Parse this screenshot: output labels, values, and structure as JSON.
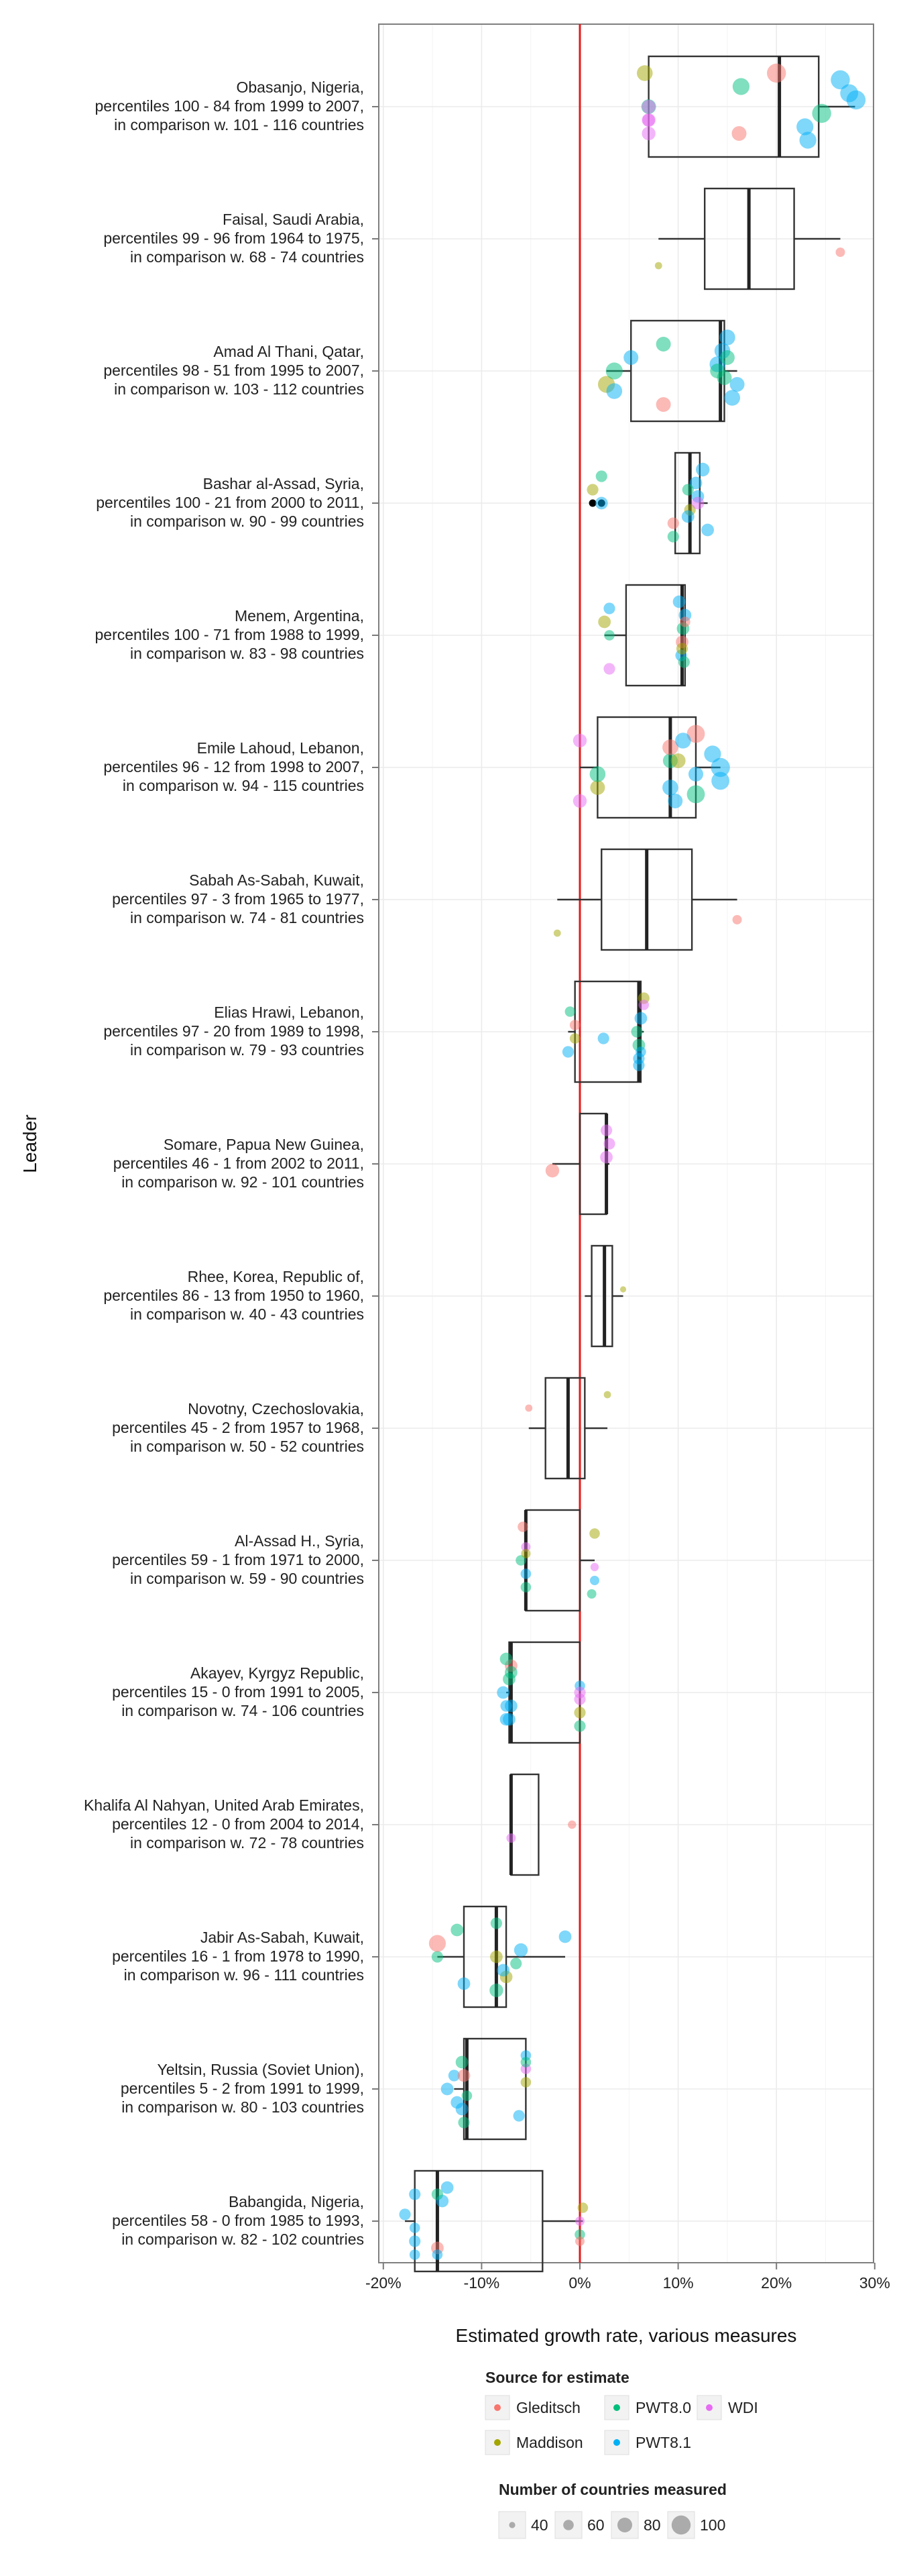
{
  "chart_data": {
    "type": "boxplot",
    "xlabel": "Estimated growth rate, various measures",
    "ylabel": "Leader",
    "xlim": [
      -0.21,
      0.3
    ],
    "x_ticks": [
      -0.2,
      -0.1,
      0.0,
      0.1,
      0.2,
      0.3
    ],
    "x_tick_labels": [
      "-20%",
      "-10%",
      "0%",
      "10%",
      "20%",
      "30%"
    ],
    "reference_line": {
      "x": 0.0,
      "color": "#e31a1c"
    },
    "grid": true,
    "legend_colour_title": "Source for estimate",
    "legend_size_title": "Number of countries measured",
    "legend_position": "bottom",
    "sources": [
      {
        "name": "Gleditsch",
        "color": "#F8766D"
      },
      {
        "name": "Maddison",
        "color": "#A3A500"
      },
      {
        "name": "PWT8.0",
        "color": "#00BF7D"
      },
      {
        "name": "PWT8.1",
        "color": "#00B0F6"
      },
      {
        "name": "WDI",
        "color": "#E76BF3"
      }
    ],
    "size_legend": [
      40,
      60,
      80,
      100
    ],
    "leaders": [
      {
        "line1": "Obasanjo, Nigeria,",
        "line2": "percentiles 100 - 84 from 1999 to 2007,",
        "line3": "in comparison w. 101 - 116 countries",
        "box": {
          "whisker_low": 0.07,
          "q1": 0.07,
          "median": 0.203,
          "q3": 0.243,
          "whisker_high": 0.28
        },
        "points": [
          [
            0.2,
            0,
            100
          ],
          [
            0.162,
            0,
            80
          ],
          [
            0.07,
            4,
            70
          ],
          [
            0.07,
            2,
            80
          ],
          [
            0.274,
            3,
            95
          ],
          [
            0.265,
            3,
            100
          ],
          [
            0.232,
            3,
            90
          ],
          [
            0.229,
            3,
            90
          ],
          [
            0.246,
            2,
            100
          ],
          [
            0.281,
            3,
            100
          ],
          [
            0.164,
            2,
            90
          ],
          [
            0.066,
            1,
            85
          ],
          [
            0.07,
            4,
            75
          ],
          [
            0.07,
            4,
            75
          ],
          [
            0.07,
            4,
            75
          ]
        ]
      },
      {
        "line1": "Faisal, Saudi Arabia,",
        "line2": "percentiles 99 - 96 from 1964 to 1975,",
        "line3": "in comparison w. 68 - 74 countries",
        "box": {
          "whisker_low": 0.08,
          "q1": 0.127,
          "median": 0.172,
          "q3": 0.218,
          "whisker_high": 0.265
        },
        "points": [
          [
            0.08,
            1,
            45
          ],
          [
            0.265,
            0,
            55
          ]
        ]
      },
      {
        "line1": "Amad Al Thani, Qatar,",
        "line2": "percentiles 98 - 51 from 1995 to 2007,",
        "line3": "in comparison w. 103 - 112 countries",
        "box": {
          "whisker_low": 0.027,
          "q1": 0.052,
          "median": 0.143,
          "q3": 0.147,
          "whisker_high": 0.16
        },
        "points": [
          [
            0.027,
            1,
            90
          ],
          [
            0.035,
            2,
            90
          ],
          [
            0.052,
            3,
            80
          ],
          [
            0.085,
            2,
            80
          ],
          [
            0.085,
            0,
            80
          ],
          [
            0.035,
            3,
            85
          ],
          [
            0.147,
            2,
            80
          ],
          [
            0.14,
            3,
            85
          ],
          [
            0.145,
            3,
            85
          ],
          [
            0.15,
            3,
            85
          ],
          [
            0.155,
            3,
            85
          ],
          [
            0.16,
            3,
            80
          ],
          [
            0.14,
            2,
            80
          ],
          [
            0.15,
            2,
            80
          ]
        ]
      },
      {
        "line1": "Bashar al-Assad, Syria,",
        "line2": "percentiles 100 - 21 from 2000 to 2011,",
        "line3": "in comparison w. 90 - 99 countries",
        "box": {
          "whisker_low": 0.097,
          "q1": 0.097,
          "median": 0.112,
          "q3": 0.122,
          "whisker_high": 0.13
        },
        "points": [
          [
            0.022,
            3,
            70
          ],
          [
            0.013,
            1,
            65
          ],
          [
            0.022,
            2,
            65
          ],
          [
            0.095,
            2,
            65
          ],
          [
            0.095,
            0,
            65
          ],
          [
            0.112,
            1,
            65
          ],
          [
            0.12,
            3,
            70
          ],
          [
            0.118,
            3,
            70
          ],
          [
            0.125,
            3,
            75
          ],
          [
            0.13,
            3,
            70
          ],
          [
            0.11,
            3,
            70
          ],
          [
            0.12,
            4,
            70
          ],
          [
            0.11,
            2,
            65
          ]
        ],
        "outliers": [
          0.013,
          0.022
        ]
      },
      {
        "line1": "Menem, Argentina,",
        "line2": "percentiles 100 - 71 from 1988 to 1999,",
        "line3": "in comparison w. 83 - 98 countries",
        "box": {
          "whisker_low": 0.025,
          "q1": 0.047,
          "median": 0.104,
          "q3": 0.107,
          "whisker_high": 0.107
        },
        "points": [
          [
            0.025,
            1,
            70
          ],
          [
            0.03,
            3,
            65
          ],
          [
            0.03,
            4,
            65
          ],
          [
            0.103,
            3,
            65
          ],
          [
            0.104,
            0,
            70
          ],
          [
            0.105,
            2,
            70
          ],
          [
            0.107,
            3,
            70
          ],
          [
            0.101,
            3,
            70
          ],
          [
            0.106,
            2,
            65
          ],
          [
            0.104,
            1,
            65
          ],
          [
            0.03,
            2,
            60
          ],
          [
            0.107,
            0,
            60
          ]
        ]
      },
      {
        "line1": "Emile Lahoud, Lebanon,",
        "line2": "percentiles 96 - 12 from 1998 to 2007,",
        "line3": "in comparison w. 94 - 115 countries",
        "box": {
          "whisker_low": 0.0,
          "q1": 0.018,
          "median": 0.092,
          "q3": 0.118,
          "whisker_high": 0.143
        },
        "points": [
          [
            0.0,
            4,
            75
          ],
          [
            0.0,
            4,
            75
          ],
          [
            0.018,
            1,
            80
          ],
          [
            0.018,
            2,
            85
          ],
          [
            0.092,
            2,
            80
          ],
          [
            0.092,
            0,
            85
          ],
          [
            0.118,
            0,
            95
          ],
          [
            0.118,
            2,
            95
          ],
          [
            0.143,
            3,
            95
          ],
          [
            0.143,
            3,
            100
          ],
          [
            0.135,
            3,
            90
          ],
          [
            0.105,
            3,
            85
          ],
          [
            0.097,
            3,
            80
          ],
          [
            0.092,
            3,
            85
          ],
          [
            0.118,
            3,
            80
          ],
          [
            0.1,
            1,
            80
          ]
        ]
      },
      {
        "line1": "Sabah As-Sabah, Kuwait,",
        "line2": "percentiles 97 - 3 from 1965 to 1977,",
        "line3": "in comparison w. 74 - 81 countries",
        "box": {
          "whisker_low": -0.023,
          "q1": 0.022,
          "median": 0.068,
          "q3": 0.114,
          "whisker_high": 0.16
        },
        "points": [
          [
            -0.023,
            1,
            45
          ],
          [
            0.16,
            0,
            55
          ]
        ]
      },
      {
        "line1": "Elias Hrawi, Lebanon,",
        "line2": "percentiles 97 - 20 from 1989 to 1998,",
        "line3": "in comparison w. 79 - 93 countries",
        "box": {
          "whisker_low": -0.012,
          "q1": -0.005,
          "median": 0.06,
          "q3": 0.062,
          "whisker_high": 0.065
        },
        "points": [
          [
            -0.012,
            3,
            65
          ],
          [
            0.024,
            3,
            65
          ],
          [
            -0.005,
            0,
            60
          ],
          [
            -0.01,
            2,
            60
          ],
          [
            0.065,
            1,
            65
          ],
          [
            0.06,
            3,
            65
          ],
          [
            0.06,
            2,
            70
          ],
          [
            0.058,
            2,
            65
          ],
          [
            0.062,
            3,
            70
          ],
          [
            0.065,
            4,
            60
          ],
          [
            0.06,
            3,
            65
          ],
          [
            0.062,
            3,
            60
          ],
          [
            -0.005,
            1,
            60
          ]
        ]
      },
      {
        "line1": "Somare, Papua New Guinea,",
        "line2": "percentiles 46 - 1 from 2002 to 2011,",
        "line3": "in comparison w. 92 - 101 countries",
        "box": {
          "whisker_low": -0.028,
          "q1": 0.0,
          "median": 0.027,
          "q3": 0.027,
          "whisker_high": 0.03
        },
        "points": [
          [
            -0.028,
            0,
            75
          ],
          [
            0.027,
            4,
            70
          ],
          [
            0.03,
            4,
            65
          ],
          [
            0.027,
            4,
            65
          ]
        ]
      },
      {
        "line1": "Rhee, Korea, Republic of,",
        "line2": "percentiles 86 - 13 from 1950 to 1960,",
        "line3": "in comparison w. 40 - 43 countries",
        "box": {
          "whisker_low": 0.005,
          "q1": 0.012,
          "median": 0.025,
          "q3": 0.033,
          "whisker_high": 0.044
        },
        "points": [
          [
            0.044,
            1,
            40
          ]
        ]
      },
      {
        "line1": "Novotny, Czechoslovakia,",
        "line2": "percentiles 45 - 2 from 1957 to 1968,",
        "line3": "in comparison w. 50 - 52 countries",
        "box": {
          "whisker_low": -0.052,
          "q1": -0.035,
          "median": -0.012,
          "q3": 0.005,
          "whisker_high": 0.028
        },
        "points": [
          [
            -0.052,
            0,
            45
          ],
          [
            0.028,
            1,
            45
          ]
        ]
      },
      {
        "line1": "Al-Assad H., Syria,",
        "line2": "percentiles 59 - 1 from 1971 to 2000,",
        "line3": "in comparison w. 59 - 90 countries",
        "box": {
          "whisker_low": -0.055,
          "q1": -0.055,
          "median": -0.055,
          "q3": 0.0,
          "whisker_high": 0.015
        },
        "points": [
          [
            -0.058,
            0,
            60
          ],
          [
            -0.055,
            2,
            60
          ],
          [
            -0.055,
            3,
            60
          ],
          [
            -0.06,
            2,
            60
          ],
          [
            -0.055,
            4,
            55
          ],
          [
            0.015,
            1,
            60
          ],
          [
            0.012,
            2,
            55
          ],
          [
            0.015,
            3,
            55
          ],
          [
            0.015,
            4,
            50
          ],
          [
            -0.055,
            1,
            55
          ]
        ]
      },
      {
        "line1": "Akayev, Kyrgyz Republic,",
        "line2": "percentiles 15 - 0 from 1991 to 2005,",
        "line3": "in comparison w. 74 - 106 countries",
        "box": {
          "whisker_low": -0.075,
          "q1": -0.072,
          "median": -0.07,
          "q3": 0.0,
          "whisker_high": 0.0
        },
        "points": [
          [
            -0.075,
            3,
            70
          ],
          [
            -0.075,
            3,
            65
          ],
          [
            -0.078,
            3,
            70
          ],
          [
            -0.072,
            2,
            70
          ],
          [
            -0.07,
            0,
            70
          ],
          [
            0.0,
            2,
            65
          ],
          [
            0.0,
            1,
            65
          ],
          [
            0.0,
            4,
            65
          ],
          [
            0.0,
            3,
            60
          ],
          [
            -0.07,
            2,
            70
          ],
          [
            -0.075,
            2,
            70
          ],
          [
            -0.072,
            3,
            70
          ],
          [
            -0.07,
            3,
            70
          ],
          [
            0.0,
            4,
            65
          ]
        ]
      },
      {
        "line1": "Khalifa Al Nahyan, United Arab Emirates,",
        "line2": "percentiles 12 - 0 from 2004 to 2014,",
        "line3": "in comparison w. 72 - 78 countries",
        "box": {
          "whisker_low": -0.07,
          "q1": -0.07,
          "median": -0.07,
          "q3": -0.042,
          "whisker_high": -0.042
        },
        "points": [
          [
            -0.07,
            4,
            55
          ],
          [
            -0.008,
            0,
            50
          ]
        ]
      },
      {
        "line1": "Jabir As-Sabah, Kuwait,",
        "line2": "percentiles 16 - 1 from 1978 to 1990,",
        "line3": "in comparison w. 96 - 111 countries",
        "box": {
          "whisker_low": -0.145,
          "q1": -0.118,
          "median": -0.085,
          "q3": -0.075,
          "whisker_high": -0.015
        },
        "points": [
          [
            -0.145,
            2,
            65
          ],
          [
            -0.145,
            0,
            90
          ],
          [
            -0.125,
            2,
            70
          ],
          [
            -0.085,
            2,
            75
          ],
          [
            -0.075,
            1,
            70
          ],
          [
            -0.065,
            2,
            65
          ],
          [
            -0.06,
            3,
            75
          ],
          [
            -0.015,
            3,
            70
          ],
          [
            -0.085,
            2,
            65
          ],
          [
            -0.118,
            3,
            70
          ],
          [
            -0.078,
            3,
            70
          ],
          [
            -0.085,
            1,
            70
          ]
        ]
      },
      {
        "line1": "Yeltsin, Russia (Soviet Union),",
        "line2": "percentiles 5 - 2 from 1991 to 1999,",
        "line3": "in comparison w. 80 - 103 countries",
        "box": {
          "whisker_low": -0.128,
          "q1": -0.118,
          "median": -0.115,
          "q3": -0.055,
          "whisker_high": -0.055
        },
        "points": [
          [
            -0.128,
            3,
            65
          ],
          [
            -0.12,
            2,
            70
          ],
          [
            -0.118,
            2,
            65
          ],
          [
            -0.12,
            3,
            70
          ],
          [
            -0.115,
            2,
            60
          ],
          [
            -0.055,
            1,
            60
          ],
          [
            -0.055,
            4,
            60
          ],
          [
            -0.055,
            3,
            60
          ],
          [
            -0.062,
            3,
            65
          ],
          [
            -0.125,
            3,
            70
          ],
          [
            -0.135,
            3,
            70
          ],
          [
            -0.118,
            0,
            70
          ],
          [
            -0.055,
            2,
            60
          ]
        ]
      },
      {
        "line1": "Babangida, Nigeria,",
        "line2": "percentiles 58 - 0 from 1985 to 1993,",
        "line3": "in comparison w. 82 - 102 countries",
        "box": {
          "whisker_low": -0.178,
          "q1": -0.168,
          "median": -0.145,
          "q3": -0.038,
          "whisker_high": 0.003
        },
        "points": [
          [
            -0.168,
            3,
            65
          ],
          [
            -0.168,
            3,
            60
          ],
          [
            -0.168,
            3,
            65
          ],
          [
            -0.168,
            3,
            60
          ],
          [
            -0.178,
            3,
            65
          ],
          [
            -0.14,
            3,
            70
          ],
          [
            -0.135,
            3,
            70
          ],
          [
            -0.145,
            0,
            70
          ],
          [
            0.0,
            2,
            60
          ],
          [
            0.0,
            4,
            55
          ],
          [
            0.003,
            1,
            60
          ],
          [
            -0.145,
            2,
            65
          ],
          [
            -0.145,
            3,
            60
          ],
          [
            0.0,
            0,
            55
          ]
        ]
      }
    ]
  }
}
